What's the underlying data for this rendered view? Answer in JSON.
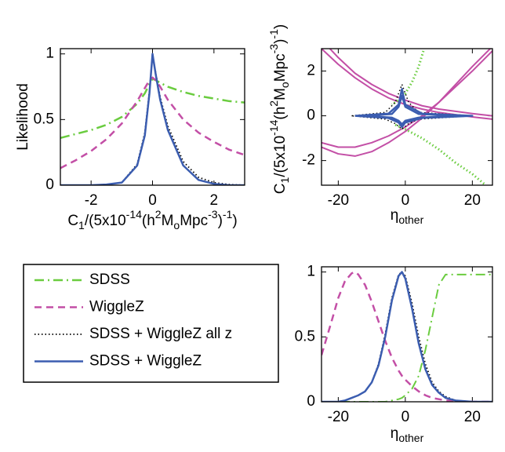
{
  "chart_data": [
    {
      "type": "line",
      "legend": "lower left",
      "xlim": [
        -3,
        3
      ],
      "ylim": [
        0,
        1.04
      ],
      "xticks": [
        -2,
        0,
        2
      ],
      "yticks": [
        0,
        0.5,
        1
      ],
      "ylabel": "Likelihood",
      "xlabel": {
        "parts": [
          "C",
          "1",
          "/(5x10",
          "-14",
          "(h",
          "2",
          "M",
          "o",
          "Mpc",
          "-3",
          ")",
          "-1",
          ")"
        ],
        "styles": [
          "baseline",
          "sub",
          "baseline",
          "sup",
          "baseline",
          "sup",
          "baseline",
          "sub",
          "baseline",
          "sup",
          "baseline",
          "sup",
          "baseline"
        ]
      },
      "x": [
        -3,
        -2.5,
        -2,
        -1.5,
        -1,
        -0.5,
        -0.25,
        -0.1,
        0,
        0.1,
        0.25,
        0.5,
        1,
        1.5,
        2,
        2.5,
        3
      ],
      "series": [
        {
          "name": "SDSS",
          "color": "#6acc3f",
          "style": "dashdot",
          "width": 2.5,
          "values": [
            0.36,
            0.39,
            0.42,
            0.46,
            0.52,
            0.62,
            0.7,
            0.77,
            0.81,
            0.8,
            0.78,
            0.75,
            0.71,
            0.68,
            0.66,
            0.64,
            0.63
          ]
        },
        {
          "name": "WiggleZ",
          "color": "#c34fa6",
          "style": "dashed",
          "width": 2.5,
          "values": [
            0.13,
            0.19,
            0.26,
            0.35,
            0.47,
            0.64,
            0.74,
            0.8,
            0.82,
            0.8,
            0.75,
            0.65,
            0.5,
            0.4,
            0.33,
            0.27,
            0.23
          ]
        },
        {
          "name": "SDSS + WiggleZ all z",
          "color": "#000000",
          "style": "dotted",
          "width": 1.8,
          "values": [
            0,
            0,
            0,
            0.005,
            0.02,
            0.16,
            0.4,
            0.72,
            0.99,
            0.86,
            0.67,
            0.45,
            0.18,
            0.06,
            0.02,
            0.005,
            0
          ]
        },
        {
          "name": "SDSS + WiggleZ",
          "color": "#3b5db0",
          "style": "solid",
          "width": 2.5,
          "values": [
            0,
            0,
            0,
            0.005,
            0.02,
            0.15,
            0.38,
            0.7,
            1.0,
            0.85,
            0.65,
            0.42,
            0.15,
            0.04,
            0.01,
            0,
            0
          ]
        }
      ]
    },
    {
      "type": "line",
      "xlim": [
        -25,
        26
      ],
      "ylim": [
        -3.1,
        3
      ],
      "xticks": [
        -20,
        0,
        20
      ],
      "yticks": [
        -2,
        0,
        2
      ],
      "ylabel": {
        "parts": [
          "C",
          "1",
          "/(5x10",
          "-14",
          "(h",
          "2",
          "M",
          "o",
          "Mpc",
          "-3",
          ")",
          "-1",
          ")"
        ],
        "styles": [
          "baseline",
          "sub",
          "baseline",
          "sup",
          "baseline",
          "sup",
          "baseline",
          "sub",
          "baseline",
          "sup",
          "baseline",
          "sup",
          "baseline"
        ]
      },
      "xlabel": {
        "parts": [
          "η",
          "other"
        ],
        "styles": [
          "baseline",
          "sub"
        ]
      },
      "series": [
        {
          "color": "#c34fa6",
          "style": "solid",
          "width": 2,
          "x": [
            -25,
            -20,
            -15,
            -10,
            -5,
            0,
            5,
            10,
            15,
            20,
            26
          ],
          "values": [
            3.0,
            2.3,
            1.7,
            1.2,
            0.8,
            0.5,
            0.3,
            0.15,
            0.05,
            -0.05,
            -0.15
          ]
        },
        {
          "color": "#c34fa6",
          "style": "solid",
          "width": 2,
          "x": [
            -25,
            -20,
            -15,
            -10,
            -5,
            0,
            5,
            10,
            15,
            20,
            26
          ],
          "values": [
            3.4,
            2.6,
            1.9,
            1.4,
            1.0,
            0.7,
            0.45,
            0.3,
            0.2,
            0.1,
            0.0
          ]
        },
        {
          "color": "#c34fa6",
          "style": "solid",
          "width": 2,
          "x": [
            -25,
            -20,
            -15,
            -10,
            -5,
            0,
            5,
            10,
            15,
            20,
            26
          ],
          "values": [
            -1.4,
            -1.7,
            -1.8,
            -1.6,
            -1.2,
            -0.7,
            -0.1,
            0.6,
            1.4,
            2.2,
            3.1
          ]
        },
        {
          "color": "#c34fa6",
          "style": "solid",
          "width": 2,
          "x": [
            -25,
            -20,
            -15,
            -10,
            -5,
            0,
            5,
            10,
            15,
            20,
            26
          ],
          "values": [
            -1.2,
            -1.4,
            -1.4,
            -1.2,
            -0.9,
            -0.5,
            0.0,
            0.6,
            1.3,
            2.0,
            2.9
          ]
        },
        {
          "color": "#6acc3f",
          "style": "dotted",
          "width": 3,
          "x": [
            6,
            4,
            2,
            0,
            -2,
            -4
          ],
          "values": [
            3.2,
            2.2,
            1.5,
            1.0,
            0.7,
            0.5
          ]
        },
        {
          "color": "#6acc3f",
          "style": "dotted",
          "width": 3,
          "x": [
            -3,
            0,
            5,
            10,
            15,
            20,
            24
          ],
          "values": [
            -0.4,
            -0.6,
            -1.0,
            -1.5,
            -2.1,
            -2.6,
            -3.1
          ]
        },
        {
          "color": "#000000",
          "style": "dotted",
          "width": 1.5,
          "x": [
            -16,
            -6,
            -3,
            -1,
            1,
            4,
            20,
            4,
            1,
            -1,
            -3,
            -6,
            -16
          ],
          "values": [
            0,
            0.15,
            0.6,
            1.4,
            0.6,
            0.15,
            0,
            -0.15,
            -0.35,
            -0.6,
            -0.35,
            -0.15,
            0
          ]
        },
        {
          "color": "#3b5db0",
          "style": "solid",
          "width": 2.5,
          "x": [
            -15,
            -5,
            -2,
            -1,
            0,
            5,
            20,
            5,
            0,
            -1,
            -2,
            -5,
            -15
          ],
          "values": [
            0,
            0.1,
            0.5,
            1.2,
            0.5,
            0.1,
            0,
            -0.1,
            -0.3,
            -0.5,
            -0.3,
            -0.1,
            0
          ]
        },
        {
          "color": "#3b5db0",
          "style": "solid",
          "width": 2.5,
          "x": [
            -12,
            -4,
            -2,
            -1,
            0,
            4,
            16,
            4,
            0,
            -1,
            -2,
            -4,
            -12
          ],
          "values": [
            0,
            0.08,
            0.4,
            0.9,
            0.4,
            0.08,
            0,
            -0.08,
            -0.22,
            -0.38,
            -0.22,
            -0.08,
            0
          ]
        }
      ]
    },
    {
      "type": "line",
      "xlim": [
        -25,
        26
      ],
      "ylim": [
        0,
        1.04
      ],
      "xticks": [
        -20,
        0,
        20
      ],
      "yticks": [
        0,
        0.5,
        1
      ],
      "xlabel": {
        "parts": [
          "η",
          "other"
        ],
        "styles": [
          "baseline",
          "sub"
        ]
      },
      "x": [
        -25,
        -22,
        -20,
        -18,
        -16,
        -15,
        -14,
        -12,
        -10,
        -8,
        -6,
        -4,
        -2,
        -1,
        0,
        2,
        4,
        6,
        8,
        10,
        12,
        15,
        20,
        26
      ],
      "series": [
        {
          "color": "#6acc3f",
          "style": "dashdot",
          "width": 2,
          "values": [
            0,
            0,
            0,
            0,
            0,
            0,
            0,
            0,
            0,
            0,
            0,
            0.01,
            0.02,
            0.03,
            0.05,
            0.1,
            0.2,
            0.4,
            0.65,
            0.9,
            0.98,
            0.98,
            0.98,
            0.98
          ]
        },
        {
          "color": "#c34fa6",
          "style": "dashed",
          "width": 2.5,
          "values": [
            0.36,
            0.62,
            0.8,
            0.93,
            0.99,
            1.0,
            0.98,
            0.9,
            0.77,
            0.62,
            0.47,
            0.34,
            0.24,
            0.2,
            0.17,
            0.12,
            0.08,
            0.05,
            0.03,
            0.02,
            0.01,
            0.005,
            0,
            0
          ]
        },
        {
          "color": "#000000",
          "style": "dotted",
          "width": 1.8,
          "values": [
            0,
            0,
            0,
            0.01,
            0.03,
            0.04,
            0.05,
            0.08,
            0.15,
            0.29,
            0.52,
            0.8,
            0.98,
            1.0,
            0.97,
            0.76,
            0.5,
            0.29,
            0.15,
            0.08,
            0.04,
            0.01,
            0,
            0
          ]
        },
        {
          "color": "#3b5db0",
          "style": "solid",
          "width": 2.5,
          "values": [
            0,
            0,
            0,
            0.01,
            0.03,
            0.04,
            0.05,
            0.08,
            0.15,
            0.28,
            0.5,
            0.78,
            0.97,
            1.0,
            0.95,
            0.72,
            0.45,
            0.25,
            0.13,
            0.07,
            0.03,
            0.01,
            0,
            0
          ]
        }
      ]
    }
  ]
}
